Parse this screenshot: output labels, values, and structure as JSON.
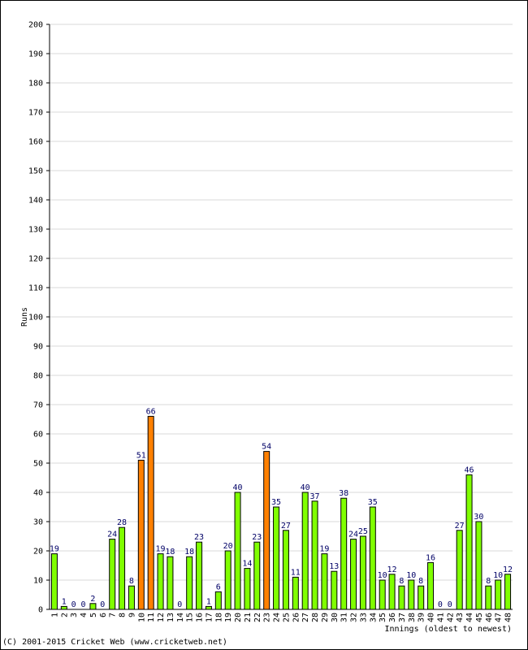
{
  "chart_data": {
    "type": "bar",
    "xlabel": "Innings (oldest to newest)",
    "ylabel": "Runs",
    "ylim": [
      0,
      200
    ],
    "ytick_step": 10,
    "grid": true,
    "categories": [
      "1",
      "2",
      "3",
      "4",
      "5",
      "6",
      "7",
      "8",
      "9",
      "10",
      "11",
      "12",
      "13",
      "14",
      "15",
      "16",
      "17",
      "18",
      "19",
      "20",
      "21",
      "22",
      "23",
      "24",
      "25",
      "26",
      "27",
      "28",
      "29",
      "30",
      "31",
      "32",
      "33",
      "34",
      "35",
      "36",
      "37",
      "38",
      "39",
      "40",
      "41",
      "42",
      "43",
      "44",
      "45",
      "46",
      "47",
      "48"
    ],
    "values": [
      19,
      1,
      0,
      0,
      2,
      0,
      24,
      28,
      8,
      51,
      66,
      19,
      18,
      0,
      18,
      23,
      1,
      6,
      20,
      40,
      14,
      23,
      54,
      35,
      27,
      11,
      40,
      37,
      19,
      13,
      38,
      24,
      25,
      35,
      10,
      12,
      8,
      10,
      8,
      16,
      0,
      0,
      27,
      46,
      30,
      8,
      10,
      12
    ],
    "colors": {
      "normal": "#80ff00",
      "fifty": "#ff8000",
      "outline": "#000000",
      "label": "#000066",
      "grid": "#d9d9d9"
    }
  },
  "footer": {
    "copyright": "(C) 2001-2015 Cricket Web (www.cricketweb.net)"
  }
}
